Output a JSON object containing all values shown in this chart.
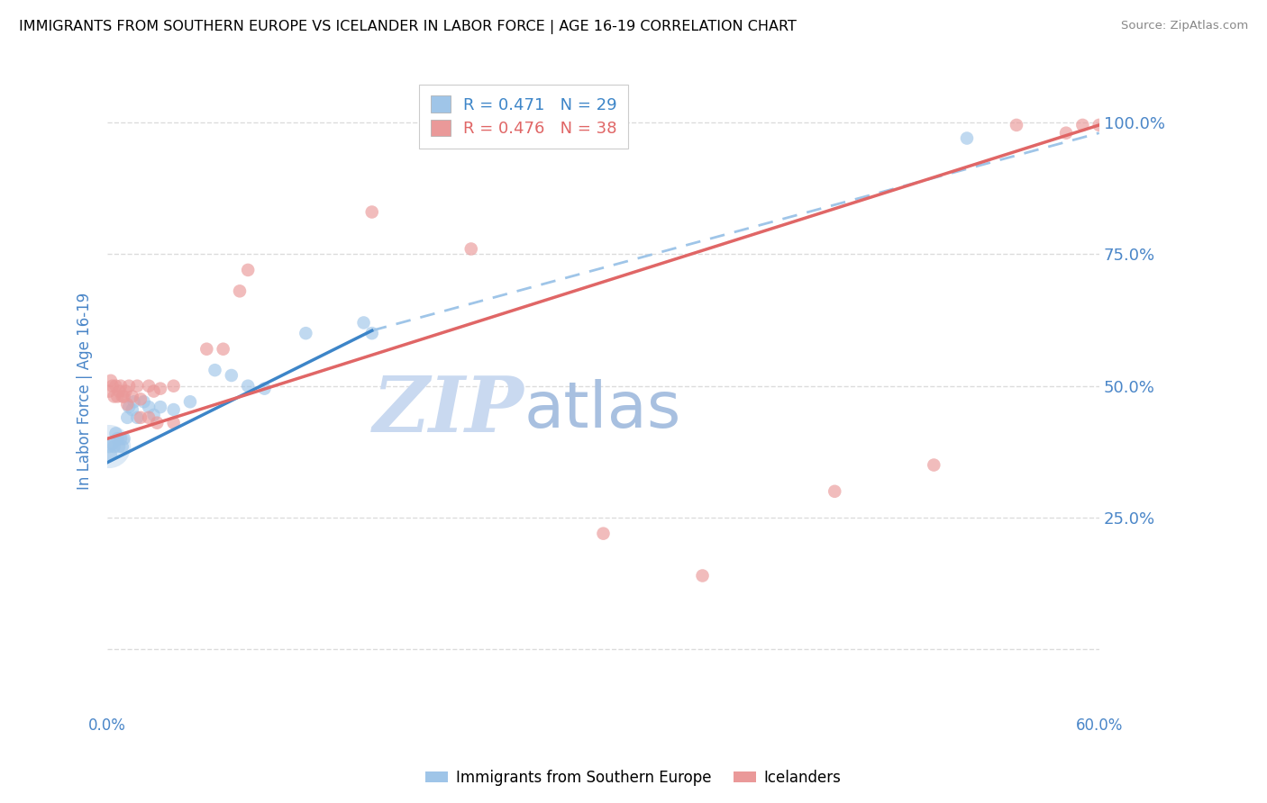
{
  "title": "IMMIGRANTS FROM SOUTHERN EUROPE VS ICELANDER IN LABOR FORCE | AGE 16-19 CORRELATION CHART",
  "source": "Source: ZipAtlas.com",
  "ylabel": "In Labor Force | Age 16-19",
  "blue_R": 0.471,
  "blue_N": 29,
  "pink_R": 0.476,
  "pink_N": 38,
  "blue_color": "#9fc5e8",
  "pink_color": "#ea9999",
  "blue_line_color": "#3d85c8",
  "pink_line_color": "#e06666",
  "blue_line_dash_color": "#9fc5e8",
  "legend_blue_label": "Immigrants from Southern Europe",
  "legend_pink_label": "Icelanders",
  "blue_scatter_x": [
    0.001,
    0.002,
    0.003,
    0.004,
    0.005,
    0.006,
    0.007,
    0.008,
    0.009,
    0.01,
    0.012,
    0.013,
    0.015,
    0.016,
    0.018,
    0.022,
    0.025,
    0.028,
    0.032,
    0.04,
    0.05,
    0.065,
    0.075,
    0.085,
    0.095,
    0.12,
    0.155,
    0.16,
    0.52
  ],
  "blue_scatter_y": [
    0.38,
    0.37,
    0.39,
    0.385,
    0.41,
    0.4,
    0.385,
    0.4,
    0.385,
    0.4,
    0.44,
    0.46,
    0.455,
    0.47,
    0.44,
    0.47,
    0.46,
    0.445,
    0.46,
    0.455,
    0.47,
    0.53,
    0.52,
    0.5,
    0.495,
    0.6,
    0.62,
    0.6,
    0.97
  ],
  "blue_bubble_x": [
    0.001
  ],
  "blue_bubble_y": [
    0.385
  ],
  "blue_bubble_size": [
    1200
  ],
  "pink_scatter_x": [
    0.001,
    0.002,
    0.003,
    0.004,
    0.005,
    0.006,
    0.007,
    0.008,
    0.009,
    0.01,
    0.011,
    0.012,
    0.013,
    0.015,
    0.018,
    0.02,
    0.025,
    0.028,
    0.032,
    0.04,
    0.06,
    0.07,
    0.08,
    0.085,
    0.02,
    0.025,
    0.03,
    0.04,
    0.16,
    0.22,
    0.3,
    0.36,
    0.44,
    0.5,
    0.55,
    0.58,
    0.59,
    0.6
  ],
  "pink_scatter_y": [
    0.49,
    0.51,
    0.5,
    0.48,
    0.5,
    0.48,
    0.49,
    0.5,
    0.48,
    0.48,
    0.49,
    0.465,
    0.5,
    0.48,
    0.5,
    0.475,
    0.5,
    0.49,
    0.495,
    0.5,
    0.57,
    0.57,
    0.68,
    0.72,
    0.44,
    0.44,
    0.43,
    0.43,
    0.83,
    0.76,
    0.22,
    0.14,
    0.3,
    0.35,
    0.995,
    0.98,
    0.995,
    0.995
  ],
  "blue_line_x0": 0.0,
  "blue_line_y0": 0.355,
  "blue_line_x1": 0.16,
  "blue_line_y1": 0.605,
  "blue_line_full_x1": 0.6,
  "blue_line_full_y1": 0.98,
  "pink_line_x0": 0.0,
  "pink_line_y0": 0.4,
  "pink_line_x1": 0.6,
  "pink_line_y1": 0.995,
  "xlim": [
    0.0,
    0.6
  ],
  "ylim": [
    -0.12,
    1.1
  ],
  "ytick_positions": [
    0.0,
    0.25,
    0.5,
    0.75,
    1.0
  ],
  "ytick_labels": [
    "",
    "25.0%",
    "50.0%",
    "75.0%",
    "100.0%"
  ],
  "xtick_positions": [
    0.0,
    0.1,
    0.2,
    0.3,
    0.4,
    0.5,
    0.6
  ],
  "xtick_labels": [
    "0.0%",
    "",
    "",
    "",
    "",
    "",
    "60.0%"
  ],
  "background_color": "#ffffff",
  "grid_color": "#d9d9d9",
  "title_color": "#000000",
  "axis_label_color": "#4a86c8",
  "tick_label_color": "#4a86c8",
  "watermark_zip_color": "#c9d9f0",
  "watermark_atlas_color": "#a8c0e0"
}
